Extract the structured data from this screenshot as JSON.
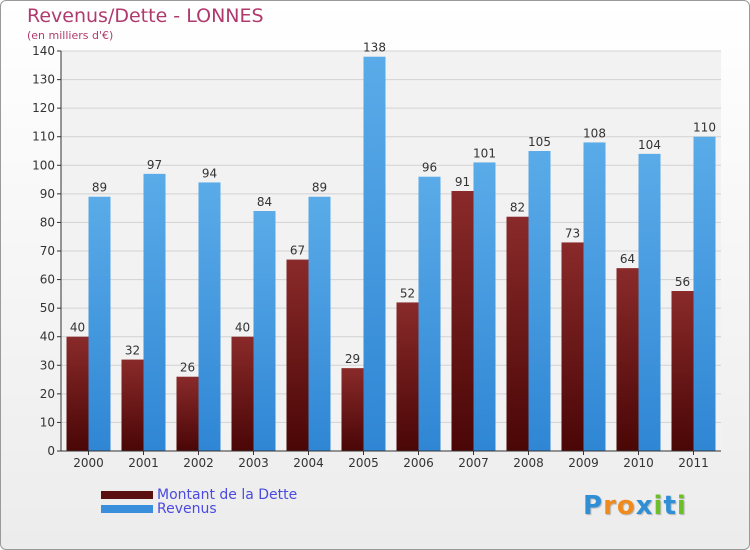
{
  "header": {
    "title": "Revenus/Dette - LONNES",
    "subtitle": "(en milliers d'€)"
  },
  "colors": {
    "dette": "#7a1c1c",
    "revenus": "#4a9be0",
    "title": "#b03a6e",
    "legend_text": "#4a4adf"
  },
  "legend": {
    "dette_label": "Montant de la Dette",
    "revenus_label": "Revenus"
  },
  "logo": {
    "text": "Proxiti",
    "letters": [
      "P",
      "r",
      "o",
      "x",
      "i",
      "t",
      "i"
    ],
    "letter_colors": [
      "#2e8fd6",
      "#f08a1c",
      "#f08a1c",
      "#2e8fd6",
      "#6cbf2b",
      "#2e8fd6",
      "#6cbf2b"
    ]
  },
  "chart_data": {
    "type": "bar",
    "categories": [
      "2000",
      "2001",
      "2002",
      "2003",
      "2004",
      "2005",
      "2006",
      "2007",
      "2008",
      "2009",
      "2010",
      "2011"
    ],
    "series": [
      {
        "name": "Montant de la Dette",
        "values": [
          40,
          32,
          26,
          40,
          67,
          29,
          52,
          91,
          82,
          73,
          64,
          56
        ]
      },
      {
        "name": "Revenus",
        "values": [
          89,
          97,
          94,
          84,
          89,
          138,
          96,
          101,
          105,
          108,
          104,
          110
        ]
      }
    ],
    "ylim": [
      0,
      140
    ],
    "ytick_step": 10,
    "grid": true,
    "legend_position": "bottom-left"
  }
}
